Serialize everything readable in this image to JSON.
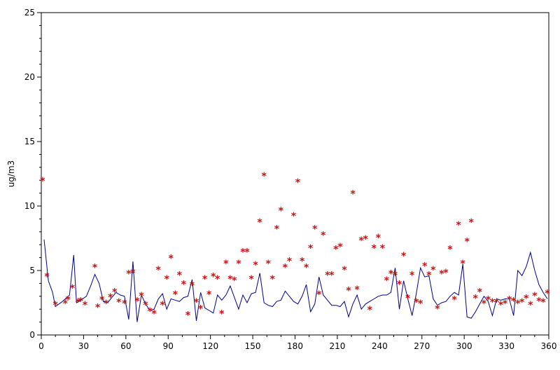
{
  "chart_data": {
    "type": "line",
    "title": "",
    "xlabel": "",
    "ylabel": "ug/m3",
    "xlim": [
      0,
      360
    ],
    "ylim": [
      0,
      25
    ],
    "x_ticks": [
      0,
      30,
      60,
      90,
      120,
      150,
      180,
      210,
      240,
      270,
      300,
      330,
      360
    ],
    "y_ticks": [
      0,
      5,
      10,
      15,
      20,
      25
    ],
    "x_tick_labels": [
      "0",
      "30",
      "60",
      "90",
      "120",
      "150",
      "180",
      "210",
      "240",
      "270",
      "300",
      "330",
      "360"
    ],
    "y_tick_labels": [
      "0",
      "5",
      "10",
      "15",
      "20",
      "25"
    ],
    "grid": false,
    "legend": "none",
    "series": [
      {
        "style": "line",
        "color": "#00008b",
        "x": [
          2,
          5,
          8,
          10,
          15,
          20,
          23,
          25,
          28,
          32,
          35,
          38,
          41,
          44,
          47,
          50,
          53,
          56,
          59,
          62,
          65,
          68,
          71,
          74,
          77,
          80,
          83,
          86,
          89,
          92,
          95,
          98,
          101,
          104,
          107,
          110,
          113,
          116,
          119,
          122,
          125,
          128,
          131,
          134,
          137,
          140,
          143,
          146,
          149,
          152,
          155,
          158,
          161,
          164,
          167,
          170,
          173,
          176,
          179,
          182,
          185,
          188,
          191,
          194,
          197,
          200,
          203,
          206,
          209,
          212,
          215,
          218,
          221,
          224,
          227,
          230,
          233,
          236,
          239,
          242,
          245,
          248,
          251,
          254,
          257,
          260,
          263,
          266,
          269,
          272,
          275,
          278,
          281,
          284,
          287,
          290,
          293,
          296,
          299,
          302,
          305,
          308,
          311,
          314,
          317,
          320,
          323,
          326,
          329,
          332,
          335,
          338,
          341,
          344,
          347,
          350,
          353,
          356,
          359
        ],
        "y": [
          7.4,
          4.2,
          3.3,
          2.2,
          2.6,
          3.1,
          6.2,
          2.5,
          2.7,
          3.0,
          3.8,
          4.7,
          4.0,
          2.6,
          2.5,
          2.9,
          3.3,
          3.1,
          3.0,
          1.2,
          5.7,
          1.0,
          3.1,
          2.4,
          1.9,
          2.0,
          2.8,
          3.2,
          2.0,
          2.8,
          2.7,
          2.6,
          2.9,
          3.0,
          4.3,
          1.1,
          3.3,
          2.1,
          1.9,
          1.7,
          3.1,
          2.7,
          3.1,
          3.8,
          2.9,
          2.0,
          3.1,
          2.5,
          3.2,
          3.3,
          4.8,
          2.5,
          2.3,
          2.2,
          2.6,
          2.7,
          3.4,
          3.0,
          2.6,
          2.4,
          3.0,
          3.9,
          1.8,
          2.4,
          4.5,
          3.1,
          2.7,
          2.3,
          2.3,
          2.2,
          2.6,
          1.4,
          2.4,
          3.1,
          2.0,
          2.4,
          2.6,
          2.8,
          3.0,
          3.1,
          3.1,
          3.3,
          5.2,
          2.0,
          4.2,
          2.8,
          1.5,
          3.2,
          5.2,
          4.5,
          4.6,
          2.8,
          2.3,
          2.5,
          2.6,
          3.0,
          3.3,
          3.1,
          5.5,
          1.4,
          1.3,
          1.8,
          2.4,
          3.0,
          2.6,
          1.5,
          2.8,
          2.7,
          2.8,
          2.8,
          1.5,
          5.0,
          4.6,
          5.3,
          6.4,
          5.0,
          3.9,
          3.3,
          2.8
        ]
      },
      {
        "style": "scatter",
        "marker": "*",
        "color": "#cc1111",
        "x": [
          1,
          4,
          10,
          17,
          19,
          22,
          26,
          28,
          31,
          38,
          40,
          43,
          46,
          49,
          52,
          55,
          59,
          62,
          65,
          68,
          71,
          74,
          77,
          80,
          83,
          86,
          89,
          92,
          95,
          98,
          101,
          104,
          107,
          110,
          113,
          116,
          119,
          122,
          125,
          128,
          131,
          134,
          137,
          140,
          143,
          146,
          149,
          152,
          155,
          158,
          161,
          164,
          167,
          170,
          173,
          176,
          179,
          182,
          185,
          188,
          191,
          194,
          197,
          200,
          203,
          206,
          209,
          212,
          215,
          218,
          221,
          224,
          227,
          230,
          233,
          236,
          239,
          242,
          245,
          248,
          251,
          254,
          257,
          260,
          263,
          266,
          269,
          272,
          275,
          278,
          281,
          284,
          287,
          290,
          293,
          296,
          299,
          302,
          305,
          308,
          311,
          314,
          317,
          320,
          323,
          326,
          329,
          332,
          335,
          338,
          341,
          344,
          347,
          350,
          353,
          356,
          359
        ],
        "y": [
          12.0,
          4.6,
          2.4,
          2.5,
          2.8,
          3.7,
          2.6,
          2.7,
          2.4,
          5.3,
          2.2,
          2.8,
          2.5,
          3.0,
          3.4,
          2.6,
          2.5,
          4.8,
          4.9,
          2.7,
          3.1,
          2.4,
          1.9,
          1.7,
          5.1,
          2.4,
          4.4,
          6.0,
          3.2,
          4.7,
          4.0,
          1.6,
          3.9,
          2.6,
          2.1,
          4.4,
          3.2,
          4.6,
          4.4,
          1.7,
          5.6,
          4.4,
          4.3,
          5.6,
          6.5,
          6.5,
          4.4,
          5.5,
          8.8,
          12.4,
          5.6,
          4.4,
          8.3,
          9.7,
          5.3,
          5.8,
          9.3,
          11.9,
          5.8,
          5.3,
          6.8,
          8.3,
          3.2,
          7.8,
          4.7,
          4.7,
          6.7,
          6.9,
          5.1,
          3.5,
          11.0,
          3.6,
          7.4,
          7.5,
          2.0,
          6.8,
          7.6,
          6.8,
          4.3,
          4.8,
          4.7,
          4.0,
          6.2,
          2.9,
          4.7,
          2.6,
          2.5,
          5.4,
          4.7,
          5.1,
          2.1,
          4.8,
          4.9,
          6.7,
          2.8,
          8.6,
          5.6,
          7.3,
          8.8,
          2.9,
          3.4,
          2.5,
          2.8,
          2.6,
          2.6,
          2.4,
          2.5,
          2.8,
          2.7,
          2.5,
          2.6,
          2.9,
          2.4,
          3.1,
          2.7,
          2.6,
          3.3
        ]
      }
    ]
  }
}
